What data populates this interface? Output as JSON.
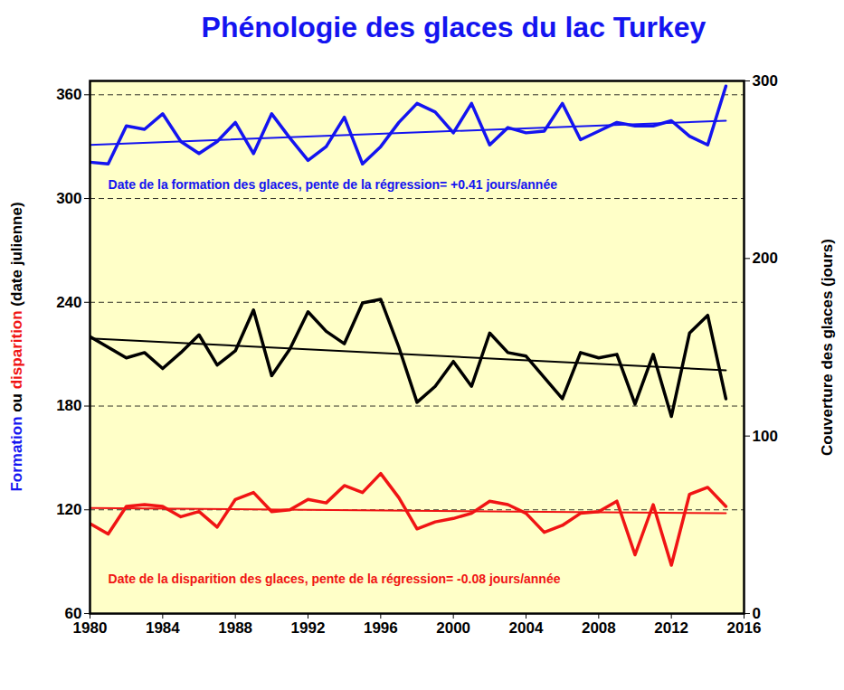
{
  "chart_data": {
    "type": "line",
    "title": "Phénologie des glaces du lac Turkey",
    "title_color": "#1414f0",
    "ylabel": [
      {
        "text": "Formation",
        "color": "#1414f0"
      },
      {
        "text": " ou ",
        "color": "#000000"
      },
      {
        "text": "disparition",
        "color": "#f01414"
      },
      {
        "text": " (date julienne)",
        "color": "#000000"
      }
    ],
    "y2label": "Couverture des glaces (jours)",
    "x": [
      1980,
      1981,
      1982,
      1983,
      1984,
      1985,
      1986,
      1987,
      1988,
      1989,
      1990,
      1991,
      1992,
      1993,
      1994,
      1995,
      1996,
      1997,
      1998,
      1999,
      2000,
      2001,
      2002,
      2003,
      2004,
      2005,
      2006,
      2007,
      2008,
      2009,
      2010,
      2011,
      2012,
      2013,
      2014,
      2015
    ],
    "xlim": [
      1980,
      2016
    ],
    "xticks": [
      1980,
      1984,
      1988,
      1992,
      1996,
      2000,
      2004,
      2008,
      2012,
      2016
    ],
    "ylim": [
      60,
      368
    ],
    "yticks": [
      60,
      120,
      180,
      240,
      300,
      360
    ],
    "y2lim": [
      0,
      300
    ],
    "y2ticks": [
      0,
      100,
      200,
      300
    ],
    "grid": true,
    "series": [
      {
        "color": "#1414f0",
        "values": [
          321,
          320,
          342,
          340,
          349,
          333,
          326,
          333,
          344,
          326,
          349,
          335,
          322,
          330,
          347,
          320,
          330,
          344,
          355,
          350,
          338,
          355,
          331,
          341,
          338,
          339,
          355,
          334,
          339,
          344,
          342,
          342,
          345,
          336,
          331,
          365
        ]
      },
      {
        "color": "#1414f0",
        "x": [
          1980,
          2015
        ],
        "values": [
          331,
          345
        ]
      },
      {
        "color": "#f01414",
        "values": [
          112,
          106,
          122,
          123,
          122,
          116,
          119,
          110,
          126,
          130,
          119,
          120,
          126,
          124,
          134,
          130,
          141,
          127,
          109,
          113,
          115,
          118,
          125,
          123,
          118,
          107,
          111,
          118,
          119,
          125,
          94,
          123,
          88,
          129,
          133,
          122
        ]
      },
      {
        "color": "#f01414",
        "x": [
          1980,
          2015
        ],
        "values": [
          121,
          118
        ]
      },
      {
        "color": "#000000",
        "axis": "y2",
        "values": [
          156,
          150,
          144,
          147,
          138,
          147,
          157,
          140,
          148,
          171,
          134,
          149,
          170,
          159,
          152,
          175,
          177,
          150,
          119,
          128,
          142,
          128,
          158,
          147,
          145,
          133,
          121,
          147,
          144,
          146,
          118,
          146,
          111,
          158,
          168,
          121
        ]
      },
      {
        "color": "#000000",
        "axis": "y2",
        "x": [
          1980,
          2015
        ],
        "values": [
          155,
          137
        ]
      }
    ],
    "annotations": [
      {
        "text": "Date de la formation des glaces, pente de la régression= +0.41 jours/année",
        "x": 1981,
        "y": 308,
        "color": "#1414f0"
      },
      {
        "text": "Date de la disparition des glaces, pente de la régression= -0.08 jours/année",
        "x": 1981,
        "y": 80,
        "color": "#f01414"
      }
    ]
  }
}
